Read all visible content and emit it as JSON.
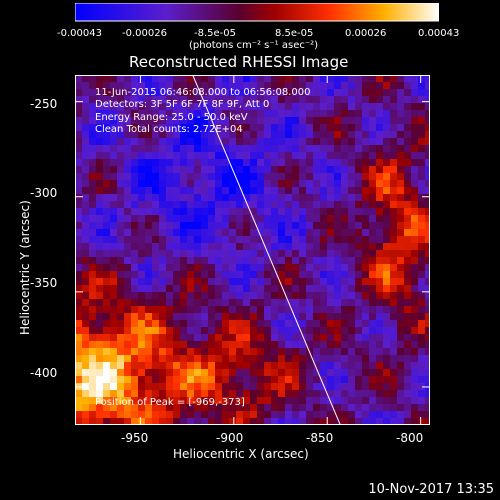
{
  "colorbar": {
    "tick_labels": [
      "-0.00043",
      "-0.00026",
      "-8.5e-05",
      "8.5e-05",
      "0.00026",
      "0.00043"
    ],
    "unit": "(photons cm⁻² s⁻¹ asec⁻²)"
  },
  "chart_data": {
    "type": "heatmap",
    "title": "Reconstructed RHESSI Image",
    "xlabel": "Heliocentric X (arcsec)",
    "ylabel": "Heliocentric Y (arcsec)",
    "xlim": [
      -985,
      -795
    ],
    "ylim": [
      -420,
      -236
    ],
    "xticks": [
      "-950",
      "-900",
      "-850",
      "-800"
    ],
    "yticks": [
      "-250",
      "-300",
      "-350",
      "-400"
    ],
    "clim": [
      -0.00043,
      0.00043
    ],
    "colormap": "blue-purple-red-yellow-white",
    "annotations": [
      "11-Jun-2015 06:46:08.000 to 06:56:08.000",
      "Detectors: 3F 5F 6F 7F 8F 9F, Att 0",
      "Energy Range: 25.0 - 50.0 keV",
      "Clean    Total counts: 2.72E+04",
      "Position of Peak = [-969,-373]"
    ],
    "limb_line": {
      "from": [
        -922,
        -236
      ],
      "to": [
        -843,
        -420
      ]
    }
  },
  "footer": {
    "timestamp": "10-Nov-2017 13:35"
  }
}
